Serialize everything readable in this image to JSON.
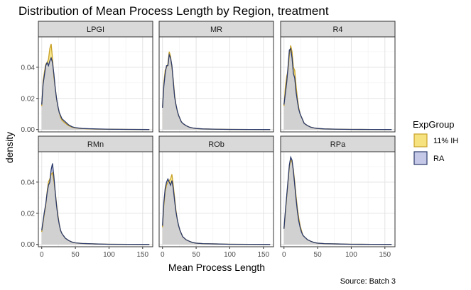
{
  "chart_data": {
    "type": "area",
    "title": "Distribution of Mean Process Length by Region, treatment",
    "xlabel": "Mean Process Length",
    "ylabel": "density",
    "caption": "Source: Batch 3",
    "xlim": [
      -5,
      165
    ],
    "ylim": [
      -0.0015,
      0.0595
    ],
    "x_ticks": [
      0,
      50,
      100,
      150
    ],
    "x_tick_labels": [
      "0",
      "50",
      "100",
      "150"
    ],
    "y_ticks": [
      0,
      0.02,
      0.04
    ],
    "y_tick_labels": [
      "0.00",
      "0.02",
      "0.04"
    ],
    "grid": true,
    "legend": {
      "title": "ExpGroup",
      "placement": "right",
      "entries": [
        {
          "label": "11% IH",
          "fill": "#f6e27f",
          "stroke": "#c9a227"
        },
        {
          "label": "RA",
          "fill": "#c5c8e6",
          "stroke": "#2b3a6b"
        }
      ]
    },
    "overlap_fill": "#d1d1d1",
    "panels": [
      {
        "name": "LPGI",
        "series": [
          {
            "name": "11% IH",
            "x": [
              0,
              2,
              4,
              6,
              8,
              10,
              12,
              14,
              16,
              18,
              20,
              22,
              24,
              26,
              28,
              30,
              35,
              40,
              45,
              50,
              60,
              80,
              100,
              130,
              160
            ],
            "y": [
              0.015,
              0.031,
              0.037,
              0.042,
              0.043,
              0.045,
              0.052,
              0.055,
              0.046,
              0.034,
              0.027,
              0.02,
              0.015,
              0.011,
              0.008,
              0.006,
              0.004,
              0.0025,
              0.0015,
              0.001,
              0.0006,
              0.0003,
              0.0002,
              0.0001,
              0
            ]
          },
          {
            "name": "RA",
            "x": [
              0,
              2,
              4,
              6,
              8,
              10,
              12,
              14,
              16,
              18,
              20,
              22,
              24,
              26,
              28,
              30,
              35,
              40,
              45,
              50,
              60,
              80,
              100,
              130,
              160
            ],
            "y": [
              0.016,
              0.029,
              0.035,
              0.041,
              0.043,
              0.041,
              0.044,
              0.046,
              0.043,
              0.036,
              0.027,
              0.02,
              0.015,
              0.011,
              0.009,
              0.007,
              0.005,
              0.003,
              0.0018,
              0.0012,
              0.0007,
              0.0004,
              0.0002,
              0.0001,
              0
            ]
          }
        ]
      },
      {
        "name": "MR",
        "series": [
          {
            "name": "11% IH",
            "x": [
              0,
              2,
              4,
              6,
              8,
              10,
              12,
              14,
              16,
              18,
              20,
              22,
              24,
              26,
              28,
              30,
              35,
              40,
              45,
              50,
              60,
              80,
              100,
              130,
              160
            ],
            "y": [
              0.014,
              0.03,
              0.038,
              0.04,
              0.042,
              0.05,
              0.047,
              0.04,
              0.032,
              0.022,
              0.016,
              0.012,
              0.009,
              0.007,
              0.005,
              0.004,
              0.0025,
              0.0015,
              0.001,
              0.0007,
              0.0004,
              0.0002,
              0.0001,
              5e-05,
              0
            ]
          },
          {
            "name": "RA",
            "x": [
              0,
              2,
              4,
              6,
              8,
              10,
              12,
              14,
              16,
              18,
              20,
              22,
              24,
              26,
              28,
              30,
              35,
              40,
              45,
              50,
              60,
              80,
              100,
              130,
              160
            ],
            "y": [
              0.014,
              0.028,
              0.036,
              0.041,
              0.041,
              0.048,
              0.046,
              0.041,
              0.031,
              0.021,
              0.016,
              0.012,
              0.009,
              0.007,
              0.005,
              0.004,
              0.0025,
              0.0015,
              0.001,
              0.0007,
              0.0004,
              0.0002,
              0.0001,
              5e-05,
              0
            ]
          }
        ]
      },
      {
        "name": "R4",
        "series": [
          {
            "name": "11% IH",
            "x": [
              0,
              2,
              4,
              6,
              8,
              10,
              12,
              14,
              16,
              18,
              20,
              22,
              24,
              26,
              28,
              30,
              35,
              40,
              45,
              50,
              60,
              80,
              100,
              130,
              160
            ],
            "y": [
              0.015,
              0.027,
              0.034,
              0.038,
              0.048,
              0.054,
              0.05,
              0.04,
              0.038,
              0.028,
              0.02,
              0.014,
              0.01,
              0.008,
              0.006,
              0.004,
              0.0025,
              0.0015,
              0.001,
              0.0007,
              0.0004,
              0.0002,
              0.0001,
              5e-05,
              0
            ]
          },
          {
            "name": "RA",
            "x": [
              0,
              2,
              4,
              6,
              8,
              10,
              12,
              14,
              16,
              18,
              20,
              22,
              24,
              26,
              28,
              30,
              35,
              40,
              45,
              50,
              60,
              80,
              100,
              130,
              160
            ],
            "y": [
              0.016,
              0.023,
              0.03,
              0.04,
              0.051,
              0.052,
              0.046,
              0.036,
              0.033,
              0.024,
              0.018,
              0.013,
              0.01,
              0.008,
              0.006,
              0.004,
              0.0025,
              0.0015,
              0.001,
              0.0007,
              0.0004,
              0.0002,
              0.0001,
              5e-05,
              0
            ]
          }
        ]
      },
      {
        "name": "RMn",
        "series": [
          {
            "name": "11% IH",
            "x": [
              0,
              2,
              4,
              6,
              8,
              10,
              12,
              14,
              16,
              18,
              20,
              22,
              24,
              26,
              28,
              30,
              35,
              40,
              45,
              50,
              60,
              80,
              100,
              130,
              160
            ],
            "y": [
              0.008,
              0.014,
              0.02,
              0.025,
              0.034,
              0.04,
              0.042,
              0.045,
              0.046,
              0.041,
              0.034,
              0.026,
              0.019,
              0.013,
              0.009,
              0.007,
              0.004,
              0.0025,
              0.0015,
              0.001,
              0.0006,
              0.0003,
              0.0001,
              5e-05,
              0
            ]
          },
          {
            "name": "RA",
            "x": [
              0,
              2,
              4,
              6,
              8,
              10,
              12,
              14,
              16,
              18,
              20,
              22,
              24,
              26,
              28,
              30,
              35,
              40,
              45,
              50,
              60,
              80,
              100,
              130,
              160
            ],
            "y": [
              0.009,
              0.015,
              0.021,
              0.026,
              0.033,
              0.038,
              0.04,
              0.048,
              0.052,
              0.044,
              0.034,
              0.025,
              0.018,
              0.013,
              0.009,
              0.007,
              0.004,
              0.0025,
              0.0015,
              0.001,
              0.0006,
              0.0003,
              0.0001,
              5e-05,
              0
            ]
          }
        ]
      },
      {
        "name": "ROb",
        "series": [
          {
            "name": "11% IH",
            "x": [
              0,
              2,
              4,
              6,
              8,
              10,
              12,
              14,
              16,
              18,
              20,
              22,
              24,
              26,
              28,
              30,
              35,
              40,
              45,
              50,
              60,
              80,
              100,
              130,
              160
            ],
            "y": [
              0.011,
              0.025,
              0.034,
              0.038,
              0.04,
              0.041,
              0.042,
              0.045,
              0.038,
              0.03,
              0.022,
              0.016,
              0.012,
              0.009,
              0.007,
              0.005,
              0.003,
              0.002,
              0.0012,
              0.0008,
              0.0005,
              0.0003,
              0.0001,
              5e-05,
              0
            ]
          },
          {
            "name": "RA",
            "x": [
              0,
              2,
              4,
              6,
              8,
              10,
              12,
              14,
              16,
              18,
              20,
              22,
              24,
              26,
              28,
              30,
              35,
              40,
              45,
              50,
              60,
              80,
              100,
              130,
              160
            ],
            "y": [
              0.012,
              0.027,
              0.036,
              0.04,
              0.042,
              0.04,
              0.038,
              0.041,
              0.036,
              0.028,
              0.021,
              0.016,
              0.012,
              0.009,
              0.007,
              0.005,
              0.003,
              0.002,
              0.0012,
              0.0008,
              0.0005,
              0.0003,
              0.0001,
              5e-05,
              0
            ]
          }
        ]
      },
      {
        "name": "RPa",
        "series": [
          {
            "name": "11% IH",
            "x": [
              0,
              2,
              4,
              6,
              8,
              10,
              12,
              14,
              16,
              18,
              20,
              22,
              24,
              26,
              28,
              30,
              35,
              40,
              45,
              50,
              60,
              80,
              100,
              130,
              160
            ],
            "y": [
              0.01,
              0.02,
              0.03,
              0.04,
              0.05,
              0.054,
              0.053,
              0.048,
              0.04,
              0.031,
              0.023,
              0.017,
              0.012,
              0.009,
              0.006,
              0.005,
              0.003,
              0.002,
              0.0012,
              0.0008,
              0.0005,
              0.0003,
              0.0001,
              5e-05,
              0
            ]
          },
          {
            "name": "RA",
            "x": [
              0,
              2,
              4,
              6,
              8,
              10,
              12,
              14,
              16,
              18,
              20,
              22,
              24,
              26,
              28,
              30,
              35,
              40,
              45,
              50,
              60,
              80,
              100,
              130,
              160
            ],
            "y": [
              0.01,
              0.021,
              0.031,
              0.041,
              0.051,
              0.056,
              0.054,
              0.047,
              0.038,
              0.029,
              0.021,
              0.015,
              0.011,
              0.008,
              0.006,
              0.005,
              0.003,
              0.002,
              0.0012,
              0.0008,
              0.0005,
              0.0003,
              0.0001,
              5e-05,
              0
            ]
          }
        ]
      }
    ]
  }
}
